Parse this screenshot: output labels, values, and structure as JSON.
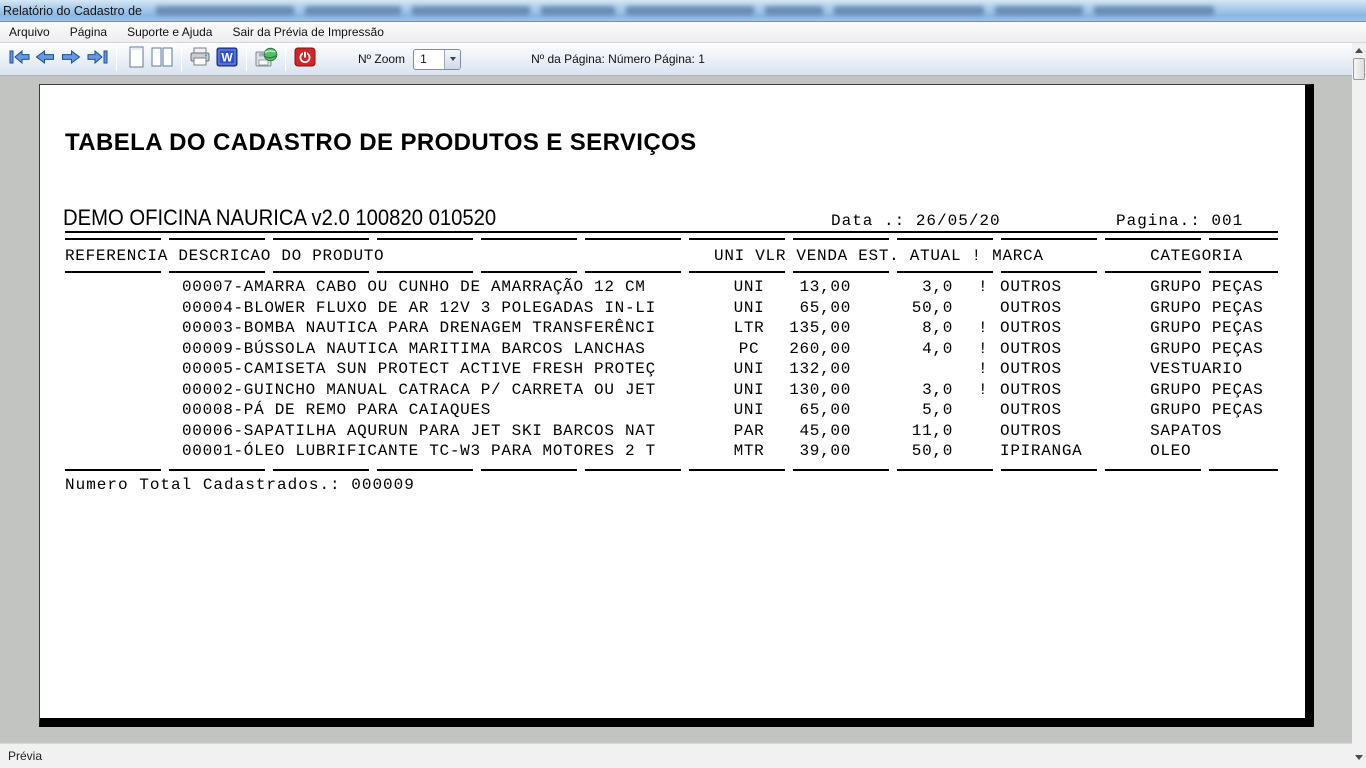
{
  "window": {
    "title_visible": "Relatório do Cadastro de",
    "status": "Prévia"
  },
  "menu": {
    "items": [
      {
        "label": "Arquivo"
      },
      {
        "label": "Página"
      },
      {
        "label": "Suporte e Ajuda"
      },
      {
        "label": "Sair da Prévia de Impressão"
      }
    ]
  },
  "toolbar": {
    "icons": [
      "first-page-icon",
      "previous-page-icon",
      "next-page-icon",
      "last-page-icon",
      "single-page-view-icon",
      "two-page-view-icon",
      "print-icon",
      "export-word-icon",
      "export-html-icon",
      "close-preview-icon"
    ],
    "zoom_label": "Nº Zoom",
    "zoom_value": "1",
    "page_info": "Nº da Página: Número Página: 1"
  },
  "report": {
    "title": "TABELA DO CADASTRO DE PRODUTOS E SERVIÇOS",
    "company_line": "DEMO OFICINA NAURICA v2.0 100820 010520",
    "date_line": "Data .: 26/05/20",
    "page_line": "Pagina.: 001",
    "header_left": "REFERENCIA DESCRICAO DO PRODUTO",
    "header_mid": "UNI VLR VENDA EST. ATUAL ! MARCA",
    "header_right": "CATEGORIA",
    "total_line": "Numero Total Cadastrados.: 000009",
    "rows": [
      {
        "ref": "",
        "desc": "00007-AMARRA CABO OU CUNHO DE AMARRAÇÃO 12 CM",
        "uni": "UNI",
        "vlr": "13,00",
        "est": "3,0",
        "alert": "!",
        "marca": "OUTROS",
        "cat": "GRUPO PEÇAS"
      },
      {
        "ref": "",
        "desc": "00004-BLOWER FLUXO DE AR 12V 3 POLEGADAS IN-LI",
        "uni": "UNI",
        "vlr": "65,00",
        "est": "50,0",
        "alert": "",
        "marca": "OUTROS",
        "cat": "GRUPO PEÇAS"
      },
      {
        "ref": "",
        "desc": "00003-BOMBA NAUTICA PARA DRENAGEM TRANSFERÊNCI",
        "uni": "LTR",
        "vlr": "135,00",
        "est": "8,0",
        "alert": "!",
        "marca": "OUTROS",
        "cat": "GRUPO PEÇAS"
      },
      {
        "ref": "",
        "desc": "00009-BÚSSOLA NAUTICA MARITIMA BARCOS LANCHAS",
        "uni": "PC",
        "vlr": "260,00",
        "est": "4,0",
        "alert": "!",
        "marca": "OUTROS",
        "cat": "GRUPO PEÇAS"
      },
      {
        "ref": "",
        "desc": "00005-CAMISETA SUN PROTECT ACTIVE FRESH PROTEÇ",
        "uni": "UNI",
        "vlr": "132,00",
        "est": "",
        "alert": "!",
        "marca": "OUTROS",
        "cat": "VESTUARIO"
      },
      {
        "ref": "",
        "desc": "00002-GUINCHO MANUAL CATRACA P/ CARRETA OU JET",
        "uni": "UNI",
        "vlr": "130,00",
        "est": "3,0",
        "alert": "!",
        "marca": "OUTROS",
        "cat": "GRUPO PEÇAS"
      },
      {
        "ref": "",
        "desc": "00008-PÁ DE REMO PARA CAIAQUES",
        "uni": "UNI",
        "vlr": "65,00",
        "est": "5,0",
        "alert": "",
        "marca": "OUTROS",
        "cat": "GRUPO PEÇAS"
      },
      {
        "ref": "",
        "desc": "00006-SAPATILHA AQURUN PARA JET SKI BARCOS NAT",
        "uni": "PAR",
        "vlr": "45,00",
        "est": "11,0",
        "alert": "",
        "marca": "OUTROS",
        "cat": "SAPATOS"
      },
      {
        "ref": "",
        "desc": "00001-ÓLEO LUBRIFICANTE TC-W3 PARA MOTORES 2 T",
        "uni": "MTR",
        "vlr": "39,00",
        "est": "50,0",
        "alert": "",
        "marca": "IPIRANGA",
        "cat": "OLEO"
      }
    ]
  }
}
